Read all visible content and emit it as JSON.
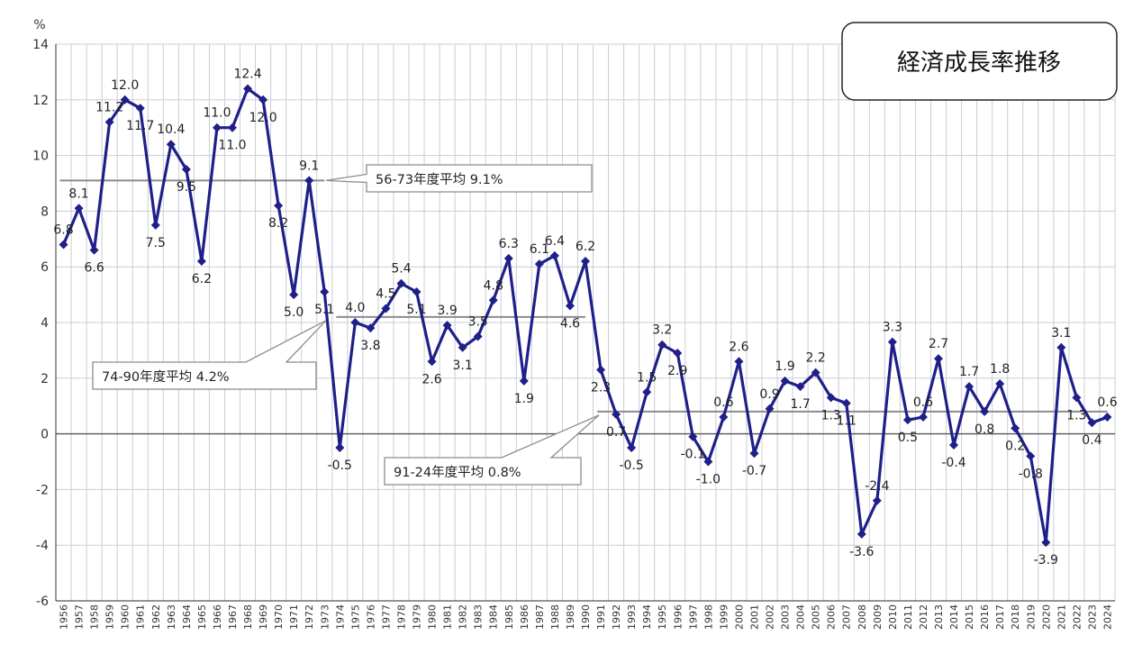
{
  "chart_data": {
    "type": "line",
    "title": "経済成長率推移",
    "ylabel": "%",
    "ylim": [
      -6,
      14
    ],
    "y_ticks": [
      "14",
      "12",
      "10",
      "8",
      "6",
      "4",
      "2",
      "0",
      "-2",
      "-4",
      "-6"
    ],
    "grid": true,
    "x": [
      "1956",
      "1957",
      "1958",
      "1959",
      "1960",
      "1961",
      "1962",
      "1963",
      "1964",
      "1965",
      "1966",
      "1967",
      "1968",
      "1969",
      "1970",
      "1971",
      "1972",
      "1973",
      "1974",
      "1975",
      "1976",
      "1977",
      "1978",
      "1979",
      "1980",
      "1981",
      "1982",
      "1983",
      "1984",
      "1985",
      "1986",
      "1987",
      "1988",
      "1989",
      "1990",
      "1991",
      "1992",
      "1993",
      "1994",
      "1995",
      "1996",
      "1997",
      "1998",
      "1999",
      "2000",
      "2001",
      "2002",
      "2003",
      "2004",
      "2005",
      "2006",
      "2007",
      "2008",
      "2009",
      "2010",
      "2011",
      "2012",
      "2013",
      "2014",
      "2015",
      "2016",
      "2017",
      "2018",
      "2019",
      "2020",
      "2021",
      "2022",
      "2023",
      "2024"
    ],
    "values": [
      6.8,
      8.1,
      6.6,
      11.2,
      12.0,
      11.7,
      7.5,
      10.4,
      9.5,
      6.2,
      11.0,
      11.0,
      12.4,
      12.0,
      8.2,
      5.0,
      9.1,
      5.1,
      -0.5,
      4.0,
      3.8,
      4.5,
      5.4,
      5.1,
      2.6,
      3.9,
      3.1,
      3.5,
      4.8,
      6.3,
      1.9,
      6.1,
      6.4,
      4.6,
      6.2,
      2.3,
      0.7,
      -0.5,
      1.5,
      3.2,
      2.9,
      -0.1,
      -1.0,
      0.6,
      2.6,
      -0.7,
      0.9,
      1.9,
      1.7,
      2.2,
      1.3,
      1.1,
      -3.6,
      -2.4,
      3.3,
      0.5,
      0.6,
      2.7,
      -0.4,
      1.7,
      0.8,
      1.8,
      0.2,
      -0.8,
      -3.9,
      3.1,
      1.3,
      0.4,
      0.6
    ],
    "data_labels": [
      "6.8",
      "8.1",
      "6.6",
      "11.2",
      "12.0",
      "11.7",
      "7.5",
      "10.4",
      "9.5",
      "6.2",
      "11.0",
      "11.0",
      "12.4",
      "12.0",
      "8.2",
      "5.0",
      "9.1",
      "5.1",
      "-0.5",
      "4.0",
      "3.8",
      "4.5",
      "5.4",
      "5.1",
      "2.6",
      "3.9",
      "3.1",
      "3.5",
      "4.8",
      "6.3",
      "1.9",
      "6.1",
      "6.4",
      "4.6",
      "6.2",
      "2.3",
      "0.7",
      "-0.5",
      "1.5",
      "3.2",
      "2.9",
      "-0.1",
      "-1.0",
      "0.6",
      "2.6",
      "-0.7",
      "0.9",
      "1.9",
      "1.7",
      "2.2",
      "1.3",
      "1.1",
      "-3.6",
      "-2.4",
      "3.3",
      "0.5",
      "0.6",
      "2.7",
      "-0.4",
      "1.7",
      "0.8",
      "1.8",
      "0.2",
      "-0.8",
      "-3.9",
      "3.1",
      "1.3",
      "0.4",
      "0.6"
    ],
    "averages": [
      {
        "label": "56-73年度平均 9.1%",
        "value": 9.1,
        "from": "1956",
        "to": "1973"
      },
      {
        "label": "74-90年度平均 4.2%",
        "value": 4.2,
        "from": "1974",
        "to": "1990"
      },
      {
        "label": "91-24年度平均 0.8%",
        "value": 0.8,
        "from": "1991",
        "to": "2024"
      }
    ],
    "colors": {
      "series": "#1f1f8a",
      "average": "#8c8c8c",
      "grid": "#c9cdd6"
    }
  }
}
